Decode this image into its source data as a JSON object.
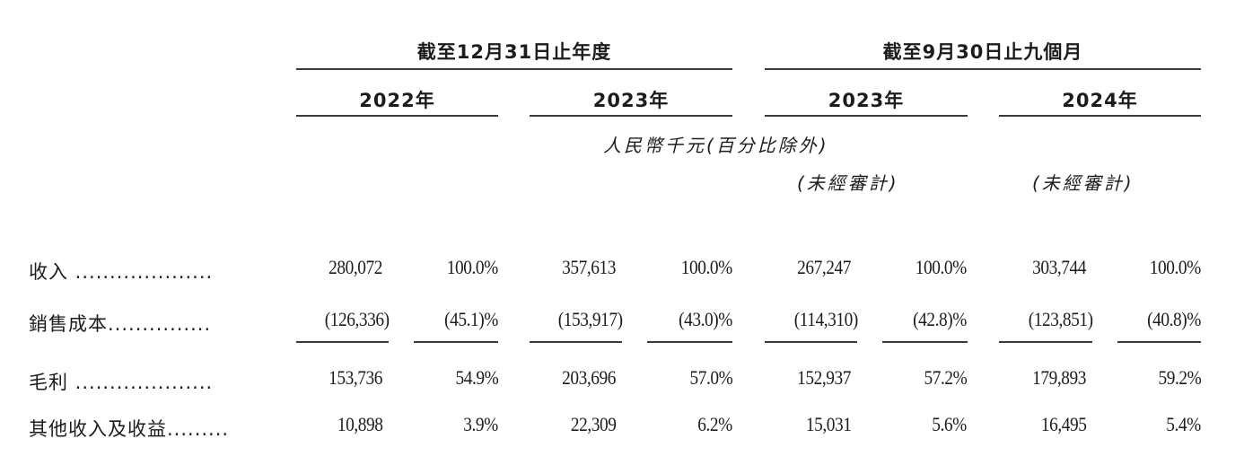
{
  "header": {
    "period_year": "截至12月31日止年度",
    "period_nine_months": "截至9月30日止九個月",
    "years": [
      "2022年",
      "2023年",
      "2023年",
      "2024年"
    ],
    "unit_note": "人民幣千元(百分比除外)",
    "unaudited_2023": "(未經審計)",
    "unaudited_2024": "(未經審計)"
  },
  "rows": [
    {
      "label": "收入 ....................",
      "values": [
        "280,072",
        "100.0%",
        "357,613",
        "100.0%",
        "267,247",
        "100.0%",
        "303,744",
        "100.0%"
      ]
    },
    {
      "label": "銷售成本...............",
      "values": [
        "(126,336)",
        "(45.1)%",
        "(153,917)",
        "(43.0)%",
        "(114,310)",
        "(42.8)%",
        "(123,851)",
        "(40.8)%"
      ]
    },
    {
      "label": "毛利 ....................",
      "values": [
        "153,736",
        "54.9%",
        "203,696",
        "57.0%",
        "152,937",
        "57.2%",
        "179,893",
        "59.2%"
      ]
    },
    {
      "label": "其他收入及收益.........",
      "values": [
        "10,898",
        "3.9%",
        "22,309",
        "6.2%",
        "15,031",
        "5.6%",
        "16,495",
        "5.4%"
      ]
    }
  ]
}
